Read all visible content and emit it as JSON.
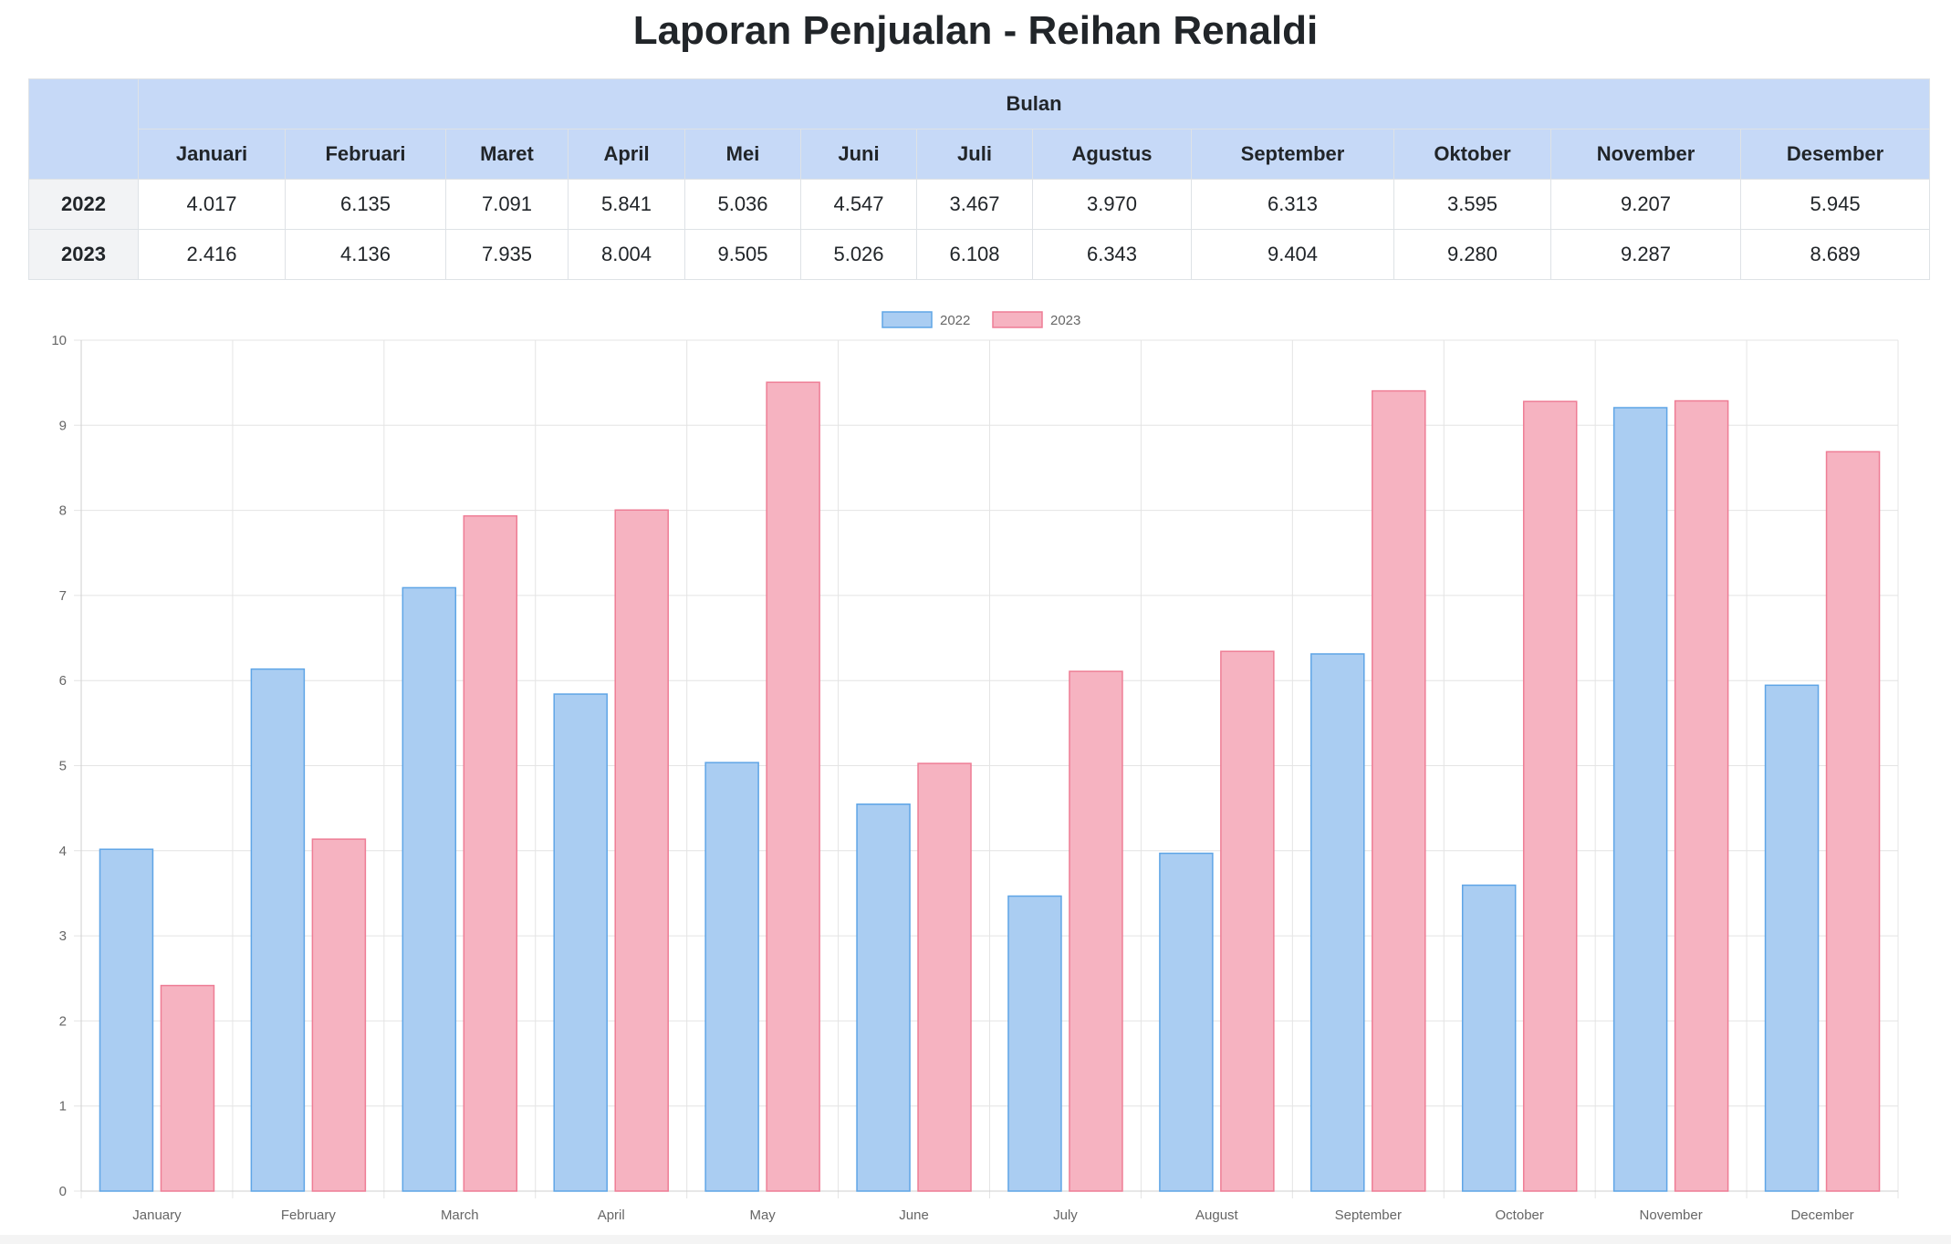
{
  "title": "Laporan Penjualan - Reihan Renaldi",
  "table": {
    "group_header": "Bulan",
    "months": [
      "Januari",
      "Februari",
      "Maret",
      "April",
      "Mei",
      "Juni",
      "Juli",
      "Agustus",
      "September",
      "Oktober",
      "November",
      "Desember"
    ],
    "rows": [
      {
        "year": "2022",
        "values": [
          "4.017",
          "6.135",
          "7.091",
          "5.841",
          "5.036",
          "4.547",
          "3.467",
          "3.970",
          "6.313",
          "3.595",
          "9.207",
          "5.945"
        ]
      },
      {
        "year": "2023",
        "values": [
          "2.416",
          "4.136",
          "7.935",
          "8.004",
          "9.505",
          "5.026",
          "6.108",
          "6.343",
          "9.404",
          "9.280",
          "9.287",
          "8.689"
        ]
      }
    ]
  },
  "chart_data": {
    "type": "bar",
    "categories": [
      "January",
      "February",
      "March",
      "April",
      "May",
      "June",
      "July",
      "August",
      "September",
      "October",
      "November",
      "December"
    ],
    "series": [
      {
        "name": "2022",
        "values": [
          4.017,
          6.135,
          7.091,
          5.841,
          5.036,
          4.547,
          3.467,
          3.97,
          6.313,
          3.595,
          9.207,
          5.945
        ],
        "fill": "#aacdf2",
        "stroke": "#5fa5e6"
      },
      {
        "name": "2023",
        "values": [
          2.416,
          4.136,
          7.935,
          8.004,
          9.505,
          5.026,
          6.108,
          6.343,
          9.404,
          9.28,
          9.287,
          8.689
        ],
        "fill": "#f6b3c1",
        "stroke": "#ee7d95"
      }
    ],
    "yticks": [
      0,
      1,
      2,
      3,
      4,
      5,
      6,
      7,
      8,
      9,
      10
    ],
    "ylim": [
      0,
      10
    ],
    "grid": true,
    "legend": "top-center"
  }
}
